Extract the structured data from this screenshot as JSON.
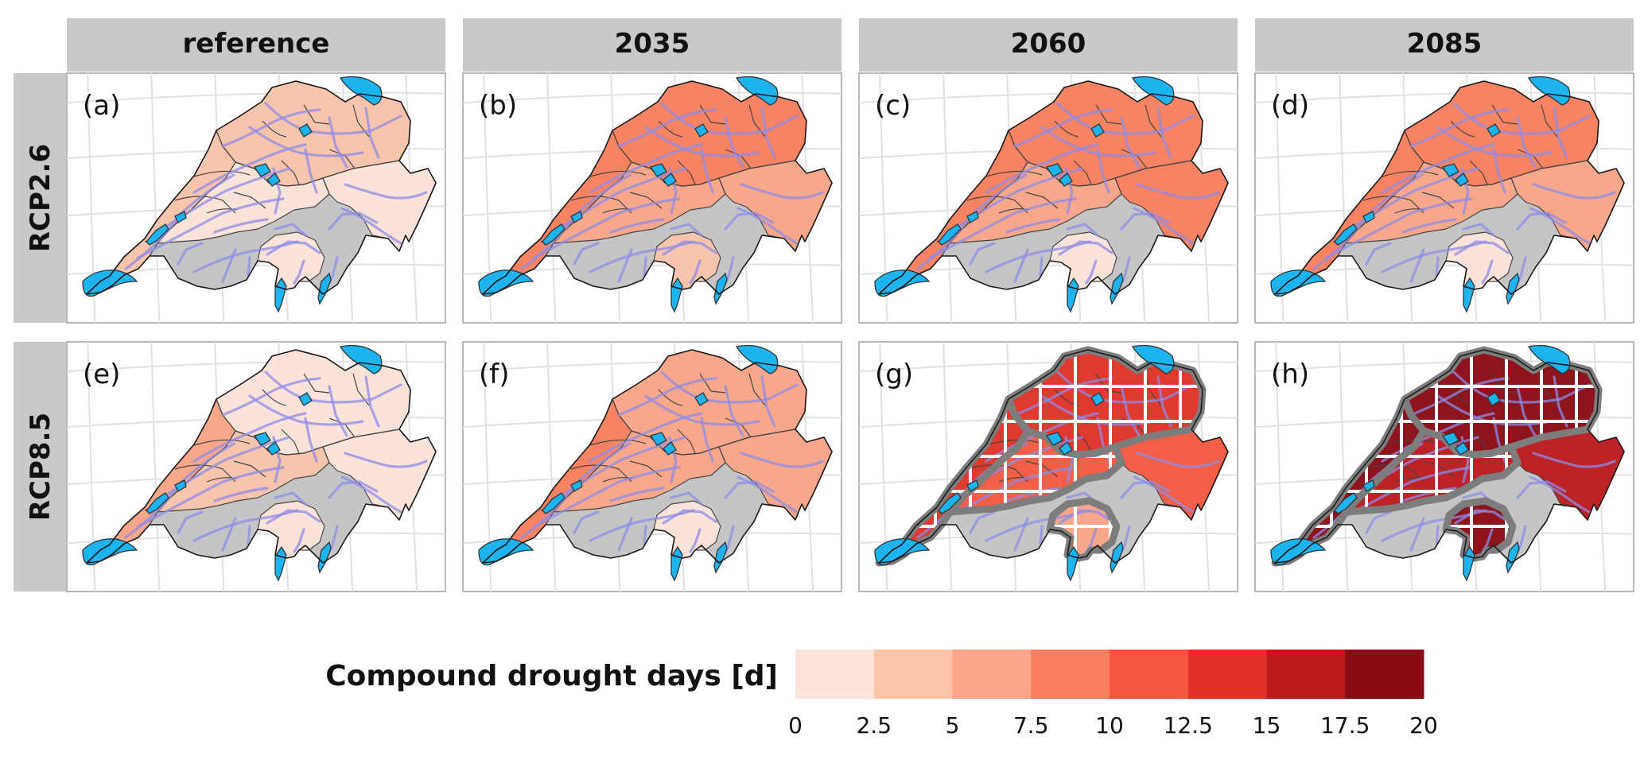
{
  "columns": [
    "reference",
    "2035",
    "2060",
    "2085"
  ],
  "rows": [
    "RCP2.6",
    "RCP8.5"
  ],
  "panels": [
    {
      "label": "(a)",
      "row": 0,
      "col": 0,
      "north": 4.5,
      "west": 3.4,
      "central": 1.6,
      "east": 2.2,
      "south": 1.5,
      "hatched": false
    },
    {
      "label": "(b)",
      "row": 0,
      "col": 1,
      "north": 8.2,
      "west": 9.2,
      "central": 6.9,
      "east": 7.2,
      "south": 4.3,
      "hatched": false
    },
    {
      "label": "(c)",
      "row": 0,
      "col": 2,
      "north": 8.6,
      "west": 9.6,
      "central": 6.3,
      "east": 7.8,
      "south": 2.3,
      "hatched": false
    },
    {
      "label": "(d)",
      "row": 0,
      "col": 3,
      "north": 9.1,
      "west": 9.4,
      "central": 6.8,
      "east": 7.4,
      "south": 2.1,
      "hatched": false
    },
    {
      "label": "(e)",
      "row": 1,
      "col": 0,
      "north": 2.3,
      "west": 5.6,
      "central": 3.2,
      "east": 2.1,
      "south": 2.2,
      "hatched": false
    },
    {
      "label": "(f)",
      "row": 1,
      "col": 1,
      "north": 6.2,
      "west": 8.8,
      "central": 6.1,
      "east": 5.4,
      "south": 2.4,
      "hatched": false
    },
    {
      "label": "(g)",
      "row": 1,
      "col": 2,
      "north": 12.8,
      "west": 13.6,
      "central": 12.2,
      "east": 10.4,
      "south": 7.2,
      "hatched": true
    },
    {
      "label": "(h)",
      "row": 1,
      "col": 3,
      "north": 18.6,
      "west": 17.6,
      "central": 17.2,
      "east": 16.3,
      "south": 18.3,
      "hatched": true
    }
  ],
  "legend": {
    "title": "Compound drought days [d]",
    "breaks": [
      0,
      2.5,
      5,
      7.5,
      10,
      12.5,
      15,
      17.5,
      20
    ],
    "tick_labels": [
      "0",
      "2.5",
      "5",
      "7.5",
      "10",
      "12.5",
      "15",
      "17.5",
      "20"
    ],
    "colors": [
      "#fee5db",
      "#fcc4ab",
      "#fca588",
      "#fb7f5e",
      "#f5583f",
      "#e13128",
      "#bd1a1e",
      "#8a0b14"
    ]
  },
  "colors": {
    "strip": "#c9c9c9",
    "alpine": "#c5c5c5",
    "lake": "#1cb3ef",
    "river": "#8c8ce8",
    "hatch_outline": "#7d7d7d",
    "hatch_lines": "#ffffff"
  }
}
